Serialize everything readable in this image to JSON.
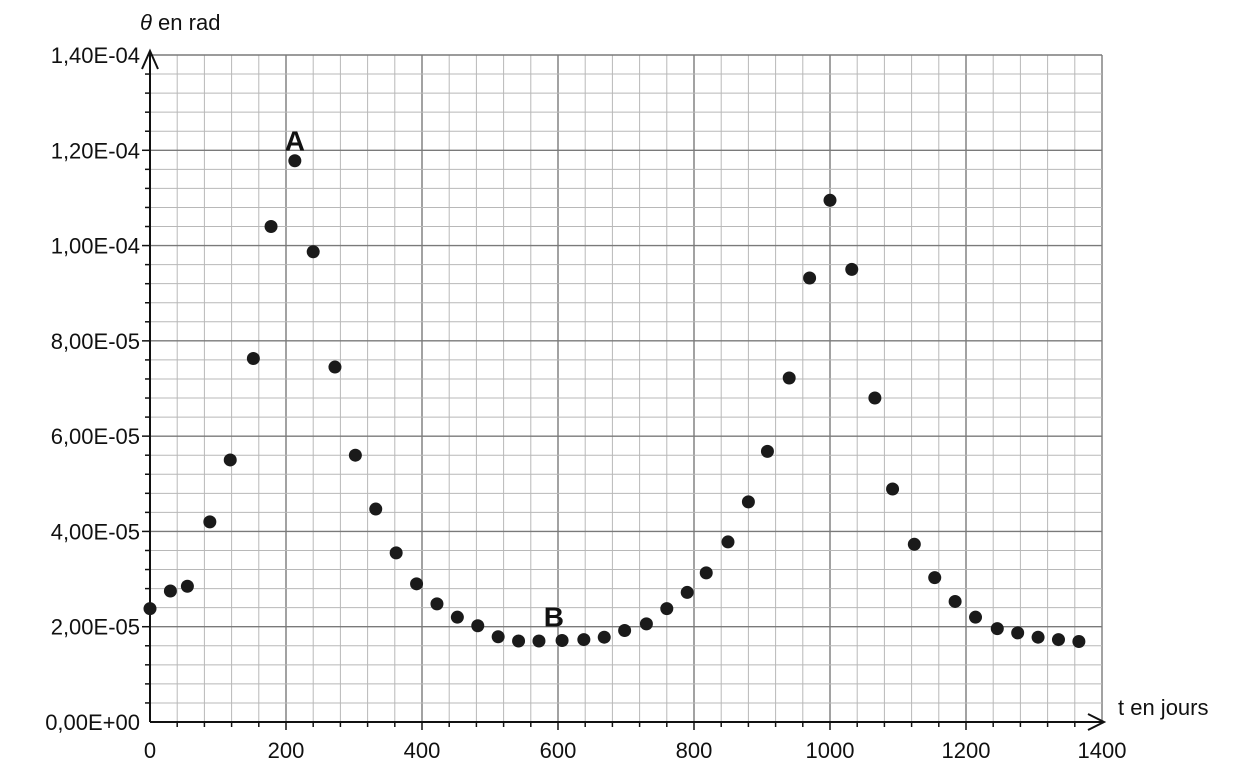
{
  "chart_data": {
    "type": "scatter",
    "ylabel_symbol": "θ",
    "ylabel_text": " en rad",
    "xlabel": "t en jours",
    "xlim": [
      0,
      1400
    ],
    "ylim": [
      0,
      0.00014
    ],
    "x_ticks": [
      0,
      200,
      400,
      600,
      800,
      1000,
      1200,
      1400
    ],
    "x_tick_labels": [
      "0",
      "200",
      "400",
      "600",
      "800",
      "1000",
      "1200",
      "1400"
    ],
    "y_ticks": [
      0,
      2e-05,
      4e-05,
      6e-05,
      8e-05,
      0.0001,
      0.00012,
      0.00014
    ],
    "y_tick_labels": [
      "0,00E+00",
      "2,00E-05",
      "4,00E-05",
      "6,00E-05",
      "8,00E-05",
      "1,00E-04",
      "1,20E-04",
      "1,40E-04"
    ],
    "grid": true,
    "colors": {
      "points": "#1a1a1a",
      "major_grid": "#7a7a7a",
      "minor_grid": "#b8b8b8",
      "axis": "#111111"
    },
    "points": [
      [
        0,
        2.38e-05
      ],
      [
        30,
        2.75e-05
      ],
      [
        55,
        2.85e-05
      ],
      [
        88,
        4.2e-05
      ],
      [
        118,
        5.5e-05
      ],
      [
        152,
        7.63e-05
      ],
      [
        178,
        0.000104
      ],
      [
        213,
        0.0001178
      ],
      [
        240,
        9.87e-05
      ],
      [
        272,
        7.45e-05
      ],
      [
        302,
        5.6e-05
      ],
      [
        332,
        4.47e-05
      ],
      [
        362,
        3.55e-05
      ],
      [
        392,
        2.9e-05
      ],
      [
        422,
        2.48e-05
      ],
      [
        452,
        2.2e-05
      ],
      [
        482,
        2.02e-05
      ],
      [
        512,
        1.79e-05
      ],
      [
        542,
        1.7e-05
      ],
      [
        572,
        1.7e-05
      ],
      [
        606,
        1.71e-05
      ],
      [
        638,
        1.73e-05
      ],
      [
        668,
        1.78e-05
      ],
      [
        698,
        1.92e-05
      ],
      [
        730,
        2.06e-05
      ],
      [
        760,
        2.38e-05
      ],
      [
        790,
        2.72e-05
      ],
      [
        818,
        3.13e-05
      ],
      [
        850,
        3.78e-05
      ],
      [
        880,
        4.62e-05
      ],
      [
        908,
        5.68e-05
      ],
      [
        940,
        7.22e-05
      ],
      [
        970,
        9.32e-05
      ],
      [
        1000,
        0.0001095
      ],
      [
        1032,
        9.5e-05
      ],
      [
        1066,
        6.8e-05
      ],
      [
        1092,
        4.89e-05
      ],
      [
        1124,
        3.73e-05
      ],
      [
        1154,
        3.03e-05
      ],
      [
        1184,
        2.53e-05
      ],
      [
        1214,
        2.2e-05
      ],
      [
        1246,
        1.96e-05
      ],
      [
        1276,
        1.87e-05
      ],
      [
        1306,
        1.78e-05
      ],
      [
        1336,
        1.73e-05
      ],
      [
        1366,
        1.69e-05
      ]
    ],
    "annotations": [
      {
        "text": "A",
        "x": 213,
        "y": 0.00012
      },
      {
        "text": "B",
        "x": 594,
        "y": 2e-05
      }
    ]
  }
}
